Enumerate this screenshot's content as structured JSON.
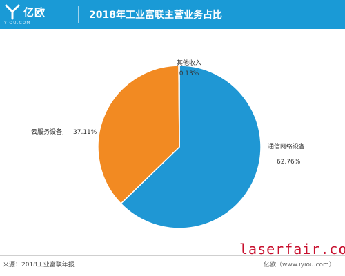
{
  "header": {
    "logo_text": "亿欧",
    "logo_sub": "YIOU.COM",
    "title": "2018年工业富联主营业务占比"
  },
  "colors": {
    "header_bg": "#1a9ad6",
    "series": [
      "#1f97d4",
      "#f28a22",
      "#9bd3ea"
    ]
  },
  "chart_data": {
    "type": "pie",
    "slices": [
      {
        "label": "通信网络设备",
        "value": 62.76,
        "value_label": "62.76%",
        "color": "#1f97d4"
      },
      {
        "label": "云服务设备,",
        "value": 37.11,
        "value_label": "37.11%",
        "color": "#f28a22"
      },
      {
        "label": "其他收入",
        "value": 0.13,
        "value_label": "0.13%",
        "color": "#9bd3ea"
      }
    ],
    "start": "12 o'clock",
    "direction": "clockwise"
  },
  "footer": {
    "source": "来源：2018工业富联年报",
    "brand": "亿欧（www.iyiou.com）"
  },
  "watermark": "laserfair.com"
}
